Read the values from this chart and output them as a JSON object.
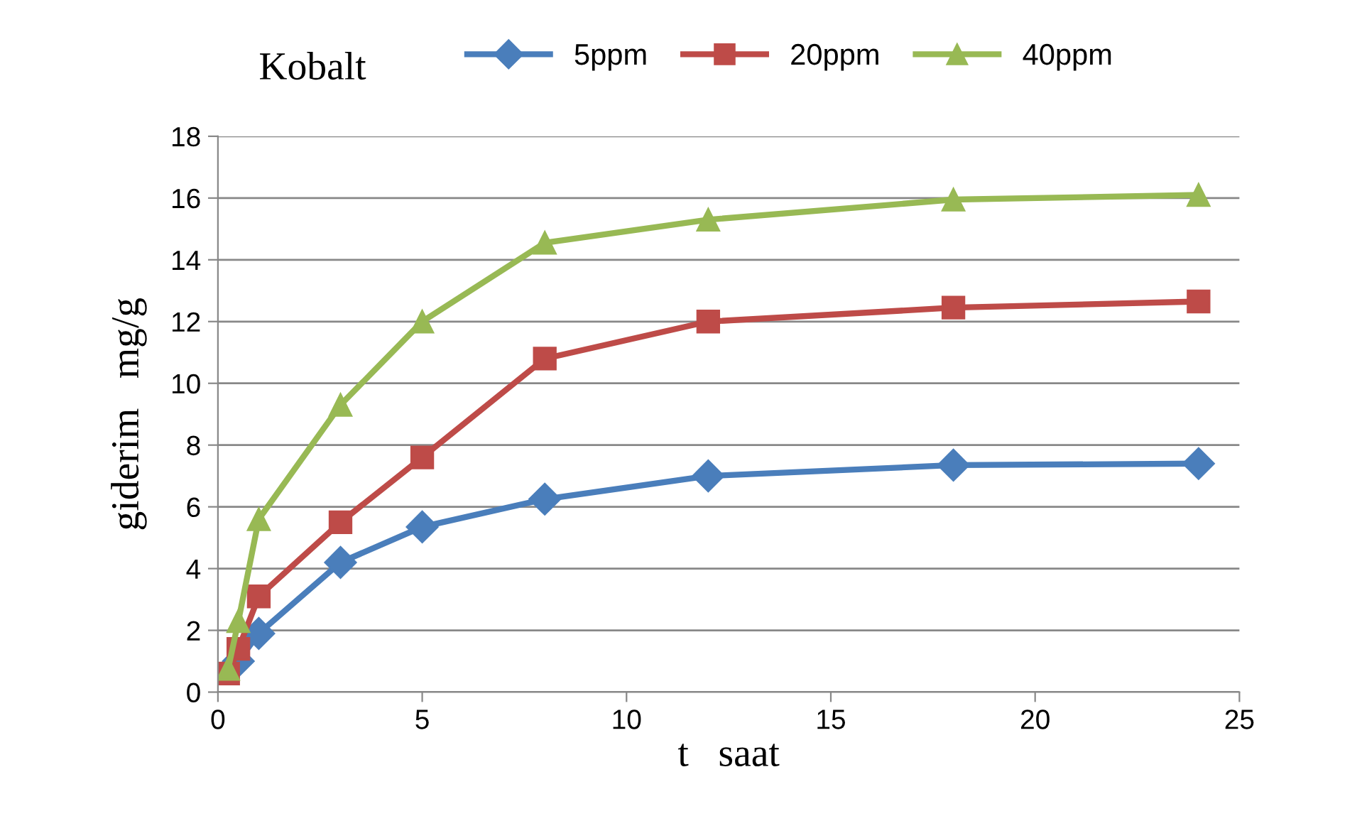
{
  "chart_data": {
    "type": "line",
    "title": "Kobalt",
    "xlabel": "t   saat",
    "ylabel": "giderim   mg/g",
    "x": [
      0.25,
      0.5,
      1,
      3,
      5,
      8,
      12,
      18,
      24
    ],
    "series": [
      {
        "name": "5ppm",
        "color": "#4a7ebb",
        "marker": "diamond",
        "values": [
          null,
          1.0,
          1.9,
          4.2,
          5.35,
          6.25,
          7.0,
          7.35,
          7.4
        ]
      },
      {
        "name": "20ppm",
        "color": "#be4b48",
        "marker": "square",
        "values": [
          0.6,
          1.4,
          3.1,
          5.5,
          7.6,
          10.8,
          12.0,
          12.45,
          12.65
        ]
      },
      {
        "name": "40ppm",
        "color": "#98b954",
        "marker": "triangle",
        "values": [
          0.75,
          2.3,
          5.6,
          9.3,
          12.0,
          14.55,
          15.3,
          15.95,
          16.1
        ]
      }
    ],
    "xlim": [
      0,
      25
    ],
    "xticks": [
      0,
      5,
      10,
      15,
      20,
      25
    ],
    "ylim": [
      0,
      18
    ],
    "yticks": [
      0,
      2,
      4,
      6,
      8,
      10,
      12,
      14,
      16,
      18
    ],
    "grid": "y",
    "legend": "top",
    "line_style": "solid"
  }
}
